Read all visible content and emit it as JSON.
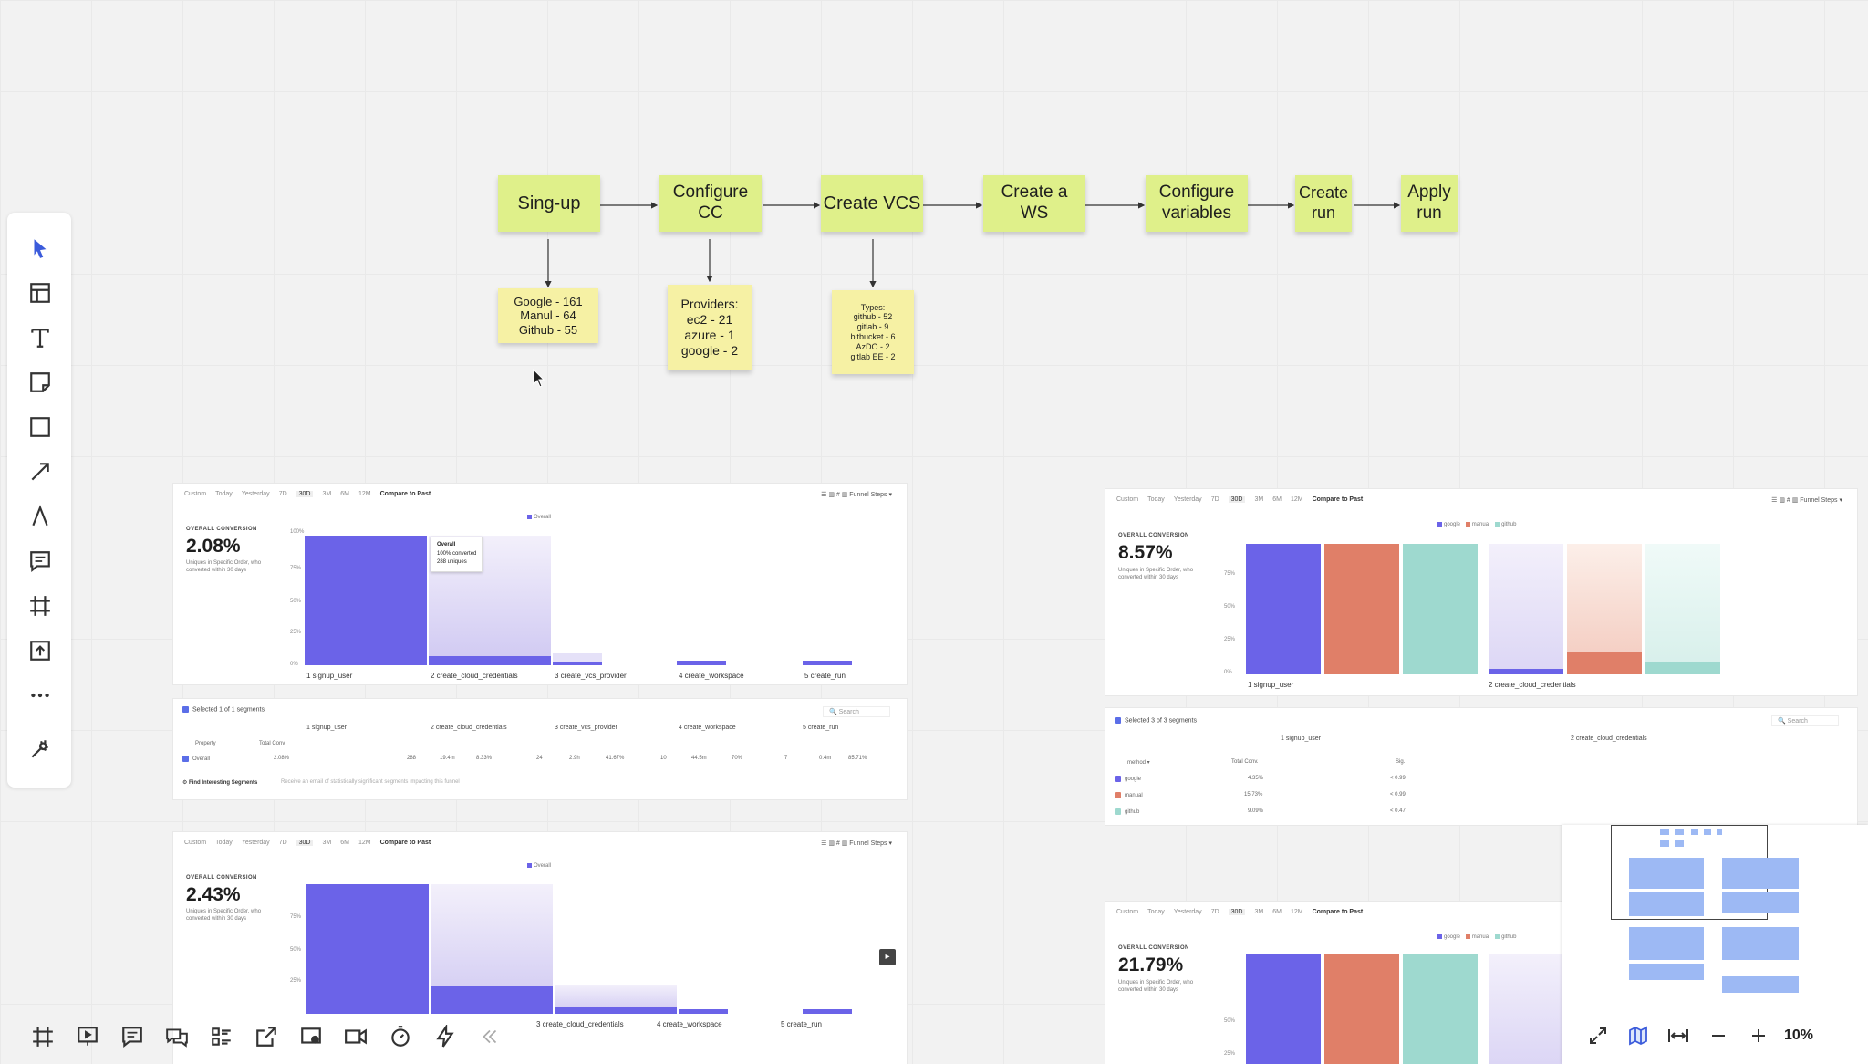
{
  "flow": {
    "steps": [
      "Sing-up",
      "Configure\nCC",
      "Create VCS",
      "Create a\nWS",
      "Configure\nvariables",
      "Create\nrun",
      "Apply\nrun"
    ],
    "notes": {
      "signup": "Google - 161\nManul - 64\nGithub - 55",
      "providers": "Providers:\nec2 - 21\nazure - 1\ngoogle - 2",
      "types": "Types:\ngithub - 52\ngitlab - 9\nbitbucket - 6\nAzDO - 2\ngitlab EE - 2"
    }
  },
  "toolbar": {
    "tools": [
      "select-icon",
      "table-icon",
      "text-icon",
      "sticky-note-icon",
      "rectangle-icon",
      "arrow-icon",
      "pen-icon",
      "comment-icon",
      "frame-icon",
      "upload-icon",
      "more-icon",
      "magic-icon"
    ]
  },
  "tabs": [
    "Custom",
    "Today",
    "Yesterday",
    "7D",
    "30D",
    "3M",
    "6M",
    "12M"
  ],
  "compare": "Compare to Past",
  "funnel_steps": "Funnel Steps",
  "conv_label": "OVERALL CONVERSION",
  "conv_sub": "Uniques in Specific Order, who converted within 30 days",
  "yticks": [
    "100%",
    "75%",
    "50%",
    "25%",
    "0%"
  ],
  "legend_overall": "Overall",
  "legend_methods": [
    "google",
    "manual",
    "github"
  ],
  "colors": {
    "purple": "#6b63e8",
    "orange": "#e07f68",
    "teal": "#9ed9cf",
    "sticky": "#dff08a"
  },
  "dash1": {
    "value": "2.08%",
    "steps": [
      "1 signup_user",
      "2 create_cloud_credentials",
      "3 create_vcs_provider",
      "4 create_workspace",
      "5 create_run"
    ],
    "tooltip": {
      "title": "Overall",
      "line1": "100% converted",
      "line2": "288 uniques"
    },
    "segments": "Selected 1 of 1 segments",
    "search": "Search",
    "table_head": [
      "Property",
      "Total Conv."
    ],
    "row": [
      "Overall",
      "2.08%"
    ],
    "row_vals": [
      "288",
      "19.4m",
      "8.33%",
      "24",
      "2.9h",
      "41.67%",
      "10",
      "44.5m",
      "70%",
      "7",
      "0.4m",
      "85.71%"
    ],
    "find": "Find Interesting Segments",
    "find_sub": "Receive an email of statistically significant segments impacting this funnel"
  },
  "dash2": {
    "value": "2.43%",
    "steps": [
      "3 create_cloud_credentials",
      "4 create_workspace",
      "5 create_run"
    ]
  },
  "dash3": {
    "value": "8.57%",
    "steps": [
      "1 signup_user",
      "2 create_cloud_credentials"
    ],
    "segments": "Selected 3 of 3 segments",
    "search": "Search",
    "table_head": [
      "method",
      "Total Conv.",
      "Sig."
    ],
    "rows": [
      [
        "google",
        "4.35%",
        "< 0.99"
      ],
      [
        "manual",
        "15.73%",
        "< 0.99"
      ],
      [
        "github",
        "9.09%",
        "< 0.47"
      ]
    ]
  },
  "dash4": {
    "value": "21.79%"
  },
  "zoom": "10%"
}
